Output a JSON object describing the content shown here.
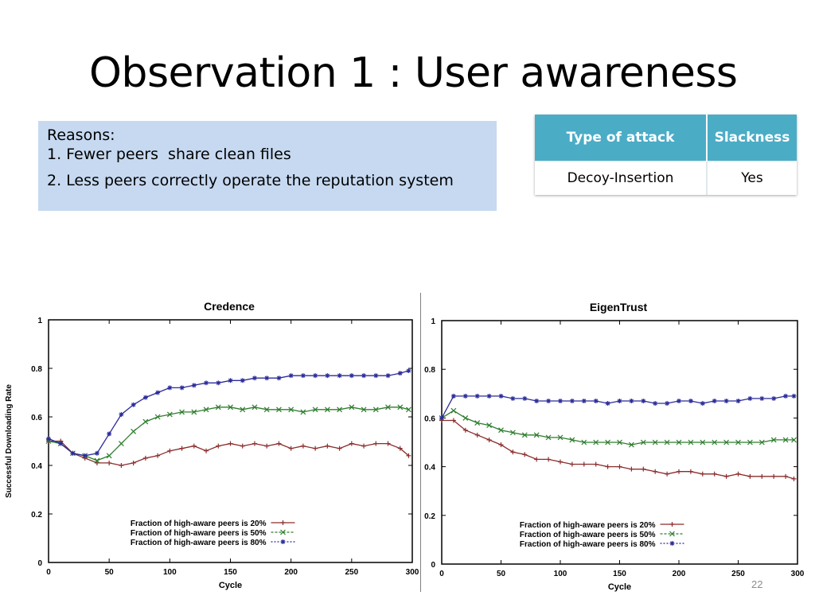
{
  "slide": {
    "title": "Observation 1 : User awareness",
    "page_number": "22"
  },
  "reasons": {
    "heading": "Reasons:",
    "items": [
      "1. Fewer peers  share clean files",
      "2. Less peers correctly operate the reputation system"
    ]
  },
  "attack_table": {
    "headers": [
      "Type of attack",
      "Slackness"
    ],
    "rows": [
      [
        "Decoy-Insertion",
        "Yes"
      ]
    ]
  },
  "colors": {
    "reasons_bg": "#c6d9f1",
    "table_header": "#4bacc6",
    "series_20": "#8b2c2c",
    "series_50": "#2e7d2e",
    "series_80": "#2b2b9a"
  },
  "chart_data": [
    {
      "type": "line",
      "title": "Credence",
      "xlabel": "Cycle",
      "ylabel": "Successful Downloading Rate",
      "xlim": [
        0,
        300
      ],
      "ylim": [
        0,
        1
      ],
      "xticks": [
        0,
        50,
        100,
        150,
        200,
        250,
        300
      ],
      "yticks": [
        0,
        0.2,
        0.4,
        0.6,
        0.8,
        1
      ],
      "legend_position": "bottom-center",
      "x": [
        0,
        10,
        20,
        30,
        40,
        50,
        60,
        70,
        80,
        90,
        100,
        110,
        120,
        130,
        140,
        150,
        160,
        170,
        180,
        190,
        200,
        210,
        220,
        230,
        240,
        250,
        260,
        270,
        280,
        290,
        297
      ],
      "series": [
        {
          "name": "Fraction of high-aware peers is 20%",
          "marker": "+",
          "values": [
            0.5,
            0.5,
            0.45,
            0.43,
            0.41,
            0.41,
            0.4,
            0.41,
            0.43,
            0.44,
            0.46,
            0.47,
            0.48,
            0.46,
            0.48,
            0.49,
            0.48,
            0.49,
            0.48,
            0.49,
            0.47,
            0.48,
            0.47,
            0.48,
            0.47,
            0.49,
            0.48,
            0.49,
            0.49,
            0.47,
            0.44
          ]
        },
        {
          "name": "Fraction of high-aware peers is 50%",
          "marker": "x",
          "values": [
            0.5,
            0.49,
            0.45,
            0.44,
            0.42,
            0.44,
            0.49,
            0.54,
            0.58,
            0.6,
            0.61,
            0.62,
            0.62,
            0.63,
            0.64,
            0.64,
            0.63,
            0.64,
            0.63,
            0.63,
            0.63,
            0.62,
            0.63,
            0.63,
            0.63,
            0.64,
            0.63,
            0.63,
            0.64,
            0.64,
            0.63
          ]
        },
        {
          "name": "Fraction of high-aware peers is 80%",
          "marker": "*",
          "values": [
            0.51,
            0.49,
            0.45,
            0.44,
            0.45,
            0.53,
            0.61,
            0.65,
            0.68,
            0.7,
            0.72,
            0.72,
            0.73,
            0.74,
            0.74,
            0.75,
            0.75,
            0.76,
            0.76,
            0.76,
            0.77,
            0.77,
            0.77,
            0.77,
            0.77,
            0.77,
            0.77,
            0.77,
            0.77,
            0.78,
            0.79
          ]
        }
      ]
    },
    {
      "type": "line",
      "title": "EigenTrust",
      "xlabel": "Cycle",
      "ylabel": "",
      "xlim": [
        0,
        300
      ],
      "ylim": [
        0,
        1
      ],
      "xticks": [
        0,
        50,
        100,
        150,
        200,
        250,
        300
      ],
      "yticks": [
        0,
        0.2,
        0.4,
        0.6,
        0.8,
        1
      ],
      "legend_position": "bottom-center",
      "x": [
        0,
        10,
        20,
        30,
        40,
        50,
        60,
        70,
        80,
        90,
        100,
        110,
        120,
        130,
        140,
        150,
        160,
        170,
        180,
        190,
        200,
        210,
        220,
        230,
        240,
        250,
        260,
        270,
        280,
        290,
        297
      ],
      "series": [
        {
          "name": "Fraction of high-aware peers is 20%",
          "marker": "+",
          "values": [
            0.59,
            0.59,
            0.55,
            0.53,
            0.51,
            0.49,
            0.46,
            0.45,
            0.43,
            0.43,
            0.42,
            0.41,
            0.41,
            0.41,
            0.4,
            0.4,
            0.39,
            0.39,
            0.38,
            0.37,
            0.38,
            0.38,
            0.37,
            0.37,
            0.36,
            0.37,
            0.36,
            0.36,
            0.36,
            0.36,
            0.35
          ]
        },
        {
          "name": "Fraction of high-aware peers is 50%",
          "marker": "x",
          "values": [
            0.6,
            0.63,
            0.6,
            0.58,
            0.57,
            0.55,
            0.54,
            0.53,
            0.53,
            0.52,
            0.52,
            0.51,
            0.5,
            0.5,
            0.5,
            0.5,
            0.49,
            0.5,
            0.5,
            0.5,
            0.5,
            0.5,
            0.5,
            0.5,
            0.5,
            0.5,
            0.5,
            0.5,
            0.51,
            0.51,
            0.51
          ]
        },
        {
          "name": "Fraction of high-aware peers is 80%",
          "marker": "*",
          "values": [
            0.6,
            0.69,
            0.69,
            0.69,
            0.69,
            0.69,
            0.68,
            0.68,
            0.67,
            0.67,
            0.67,
            0.67,
            0.67,
            0.67,
            0.66,
            0.67,
            0.67,
            0.67,
            0.66,
            0.66,
            0.67,
            0.67,
            0.66,
            0.67,
            0.67,
            0.67,
            0.68,
            0.68,
            0.68,
            0.69,
            0.69
          ]
        }
      ]
    }
  ]
}
